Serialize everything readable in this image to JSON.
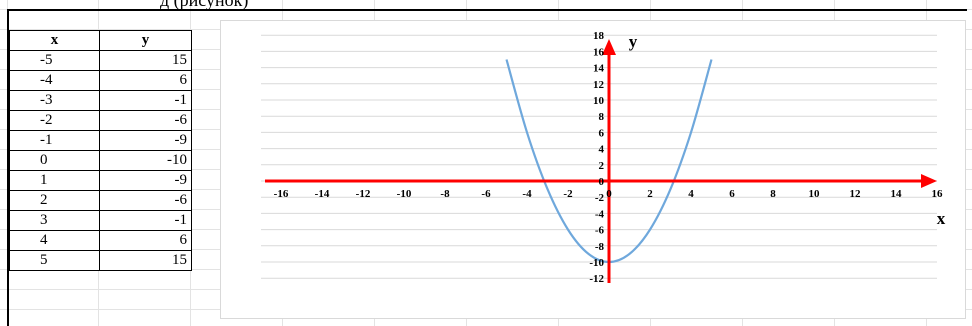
{
  "caption_fragment": "д (рисунок)",
  "table": {
    "header_x": "x",
    "header_y": "y",
    "rows": [
      {
        "x": "-5",
        "y": "15"
      },
      {
        "x": "-4",
        "y": "6"
      },
      {
        "x": "-3",
        "y": "-1"
      },
      {
        "x": "-2",
        "y": "-6"
      },
      {
        "x": "-1",
        "y": "-9"
      },
      {
        "x": "0",
        "y": "-10"
      },
      {
        "x": "1",
        "y": "-9"
      },
      {
        "x": "2",
        "y": "-6"
      },
      {
        "x": "3",
        "y": "-1"
      },
      {
        "x": "4",
        "y": "6"
      },
      {
        "x": "5",
        "y": "15"
      }
    ]
  },
  "chart_data": {
    "type": "line",
    "title": "",
    "xlabel": "x",
    "ylabel": "y",
    "xlim": [
      -16,
      16
    ],
    "ylim": [
      -12,
      18
    ],
    "x_ticks": [
      -16,
      -14,
      -12,
      -10,
      -8,
      -6,
      -4,
      -2,
      0,
      2,
      4,
      6,
      8,
      10,
      12,
      14,
      16
    ],
    "y_ticks": [
      -12,
      -10,
      -8,
      -6,
      -4,
      -2,
      0,
      2,
      4,
      6,
      8,
      10,
      12,
      14,
      16,
      18
    ],
    "grid": true,
    "series": [
      {
        "x": [
          -5,
          -4,
          -3,
          -2,
          -1,
          0,
          1,
          2,
          3,
          4,
          5
        ],
        "y": [
          15,
          6,
          -1,
          -6,
          -9,
          -10,
          -9,
          -6,
          -1,
          6,
          15
        ],
        "smooth": true
      }
    ],
    "colors": {
      "curve": "#6fa8dc",
      "axes": "#ff0000",
      "gridlines": "#d9d9d9"
    }
  }
}
